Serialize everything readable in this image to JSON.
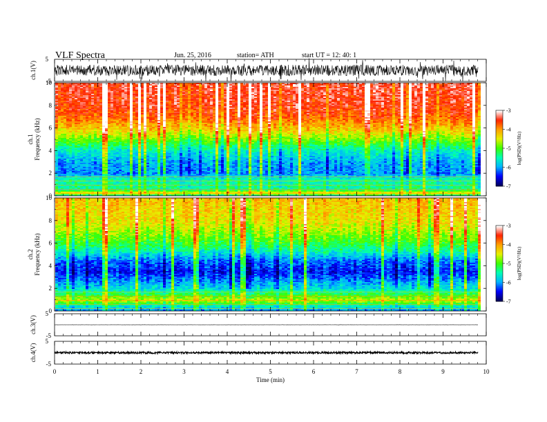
{
  "header": {
    "title": "VLF  Spectra",
    "date": "Jun. 25, 2016",
    "station": "station= ATH",
    "start": "start  UT  =    12: 40: 1"
  },
  "colors": {
    "spectrogram_scale": [
      "#000060",
      "#0000ff",
      "#00b4ff",
      "#00ffb4",
      "#3cff00",
      "#e6f000",
      "#ffa000",
      "#ff2200",
      "#ffffff"
    ]
  },
  "chart_data": [
    {
      "type": "line",
      "panel": "ch1-waveform",
      "ylabel": "ch.1(V)",
      "y_ticks": [
        "5",
        "-5"
      ],
      "ylim": [
        -5,
        5
      ],
      "description_level": 0,
      "amplitude_approx": 2.5,
      "xlim": [
        0,
        10
      ],
      "color": "#000000"
    },
    {
      "type": "heatmap",
      "panel": "ch1-spectrogram",
      "ylabel_line1": "ch.1",
      "ylabel_line2": "Frequency  (kHz)",
      "y_ticks": [
        "0",
        "2",
        "4",
        "6",
        "8",
        "10"
      ],
      "ylim": [
        0,
        10
      ],
      "xlim": [
        0,
        9.8
      ],
      "colorbar": {
        "label": "log(PSD)(V²/Hz)",
        "ticks": [
          "-3",
          "-4",
          "-5",
          "-6",
          "-7"
        ],
        "range": [
          -7,
          -3
        ]
      },
      "profile_log_psd": [
        {
          "f": 0.0,
          "v": -6.0
        },
        {
          "f": 0.3,
          "v": -4.2
        },
        {
          "f": 0.6,
          "v": -5.4
        },
        {
          "f": 1.5,
          "v": -5.5
        },
        {
          "f": 2.0,
          "v": -6.1
        },
        {
          "f": 3.0,
          "v": -6.0
        },
        {
          "f": 4.0,
          "v": -5.6
        },
        {
          "f": 5.0,
          "v": -4.9
        },
        {
          "f": 6.0,
          "v": -4.2
        },
        {
          "f": 7.0,
          "v": -3.7
        },
        {
          "f": 8.0,
          "v": -3.5
        },
        {
          "f": 10.0,
          "v": -3.4
        }
      ]
    },
    {
      "type": "heatmap",
      "panel": "ch2-spectrogram",
      "ylabel_line1": "ch.2",
      "ylabel_line2": "Frequency  (kHz)",
      "y_ticks": [
        "0",
        "2",
        "4",
        "6",
        "8",
        "10"
      ],
      "ylim": [
        0,
        10
      ],
      "xlim": [
        0,
        9.8
      ],
      "colorbar": {
        "label": "log(PSD)(V²/Hz)",
        "ticks": [
          "-3",
          "-4",
          "-5",
          "-6",
          "-7"
        ],
        "range": [
          -7,
          -3
        ]
      },
      "profile_log_psd": [
        {
          "f": 0.0,
          "v": -6.2
        },
        {
          "f": 0.5,
          "v": -5.6
        },
        {
          "f": 1.0,
          "v": -4.6
        },
        {
          "f": 2.0,
          "v": -5.7
        },
        {
          "f": 3.5,
          "v": -6.5
        },
        {
          "f": 4.5,
          "v": -6.2
        },
        {
          "f": 5.5,
          "v": -5.4
        },
        {
          "f": 6.5,
          "v": -4.9
        },
        {
          "f": 8.0,
          "v": -4.4
        },
        {
          "f": 10.0,
          "v": -4.2
        }
      ]
    },
    {
      "type": "line",
      "panel": "ch3-waveform",
      "ylabel": "ch.3(V)",
      "y_ticks": [
        "5",
        "-5"
      ],
      "ylim": [
        -5,
        5
      ],
      "level": 0,
      "amplitude_approx": 0.05,
      "xlim": [
        0,
        9.8
      ]
    },
    {
      "type": "line",
      "panel": "ch4-waveform",
      "ylabel": "ch.4(V)",
      "y_ticks": [
        "5",
        "-5"
      ],
      "ylim": [
        -5,
        5
      ],
      "level": 0,
      "amplitude_approx": 0.4,
      "xlim": [
        0,
        9.8
      ]
    }
  ],
  "x_axis": {
    "label": "Time  (min)",
    "ticks": [
      "0",
      "1",
      "2",
      "3",
      "4",
      "5",
      "6",
      "7",
      "8",
      "9",
      "10"
    ],
    "xlim": [
      0,
      10
    ]
  }
}
